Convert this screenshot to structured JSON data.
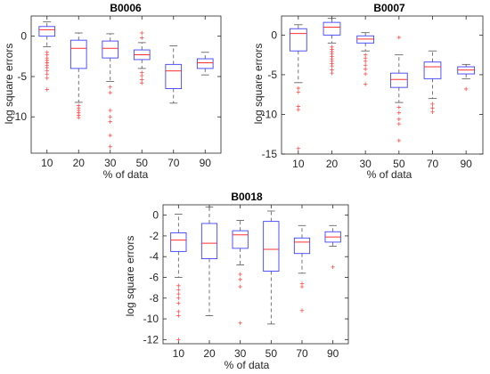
{
  "colors": {
    "box": "#4040ff",
    "whisker": "#555555",
    "median": "#ff3030",
    "outlier": "#ff4d4d",
    "axis": "#262626"
  },
  "chart_data": [
    {
      "type": "box",
      "title": "B0006",
      "xlabel": "% of data",
      "ylabel": "log square errors",
      "categories": [
        "10",
        "20",
        "30",
        "50",
        "70",
        "90"
      ],
      "yticks": [
        0,
        -5,
        -10
      ],
      "ylim": [
        -14.5,
        2.5
      ],
      "grid": false,
      "boxes": [
        {
          "category": "10",
          "whisker_low": -1.3,
          "q1": 0.0,
          "median": 0.8,
          "q3": 1.2,
          "whisker_high": 1.8,
          "outliers": [
            -2.0,
            -2.3,
            -2.7,
            -3.0,
            -3.3,
            -3.6,
            -3.9,
            -4.3,
            -4.7,
            -5.2,
            -6.6
          ]
        },
        {
          "category": "20",
          "whisker_low": -8.2,
          "q1": -4.0,
          "median": -1.5,
          "q3": -0.5,
          "whisker_high": 0.4,
          "outliers": [
            -8.6,
            -8.9,
            -9.2,
            -9.5,
            -9.8,
            -10.1
          ]
        },
        {
          "category": "30",
          "whisker_low": -5.6,
          "q1": -2.7,
          "median": -1.5,
          "q3": -0.6,
          "whisker_high": 0.3,
          "outliers": [
            -6.3,
            -7.0,
            -9.2,
            -10.0,
            -10.6,
            -12.3,
            -13.7
          ]
        },
        {
          "category": "50",
          "whisker_low": -4.0,
          "q1": -2.9,
          "median": -2.3,
          "q3": -1.7,
          "whisker_high": -0.8,
          "outliers": [
            -0.2,
            0.4,
            -4.5,
            -4.9,
            -5.4,
            -5.8
          ]
        },
        {
          "category": "70",
          "whisker_low": -8.3,
          "q1": -6.5,
          "median": -4.3,
          "q3": -3.5,
          "whisker_high": -1.2,
          "outliers": []
        },
        {
          "category": "90",
          "whisker_low": -4.8,
          "q1": -4.0,
          "median": -3.3,
          "q3": -2.8,
          "whisker_high": -2.0,
          "outliers": []
        }
      ]
    },
    {
      "type": "box",
      "title": "B0007",
      "xlabel": "% of data",
      "ylabel": "log square errors",
      "categories": [
        "10",
        "20",
        "30",
        "50",
        "70",
        "90"
      ],
      "yticks": [
        0,
        -5,
        -10,
        -15
      ],
      "ylim": [
        -15,
        2.4
      ],
      "grid": false,
      "boxes": [
        {
          "category": "10",
          "whisker_low": -6.0,
          "q1": -2.0,
          "median": 0.2,
          "q3": 0.8,
          "whisker_high": 1.3,
          "outliers": [
            -6.7,
            -7.2,
            -9.0,
            -9.4,
            -14.3
          ]
        },
        {
          "category": "20",
          "whisker_low": -1.0,
          "q1": 0.0,
          "median": 1.0,
          "q3": 1.6,
          "whisker_high": 2.1,
          "outliers": [
            -1.5,
            -1.8,
            -2.1,
            -2.4,
            -2.7,
            -3.0,
            -3.3,
            -3.6,
            -3.9,
            -4.4,
            -4.8
          ]
        },
        {
          "category": "30",
          "whisker_low": -2.0,
          "q1": -1.0,
          "median": -0.5,
          "q3": -0.1,
          "whisker_high": 0.3,
          "outliers": [
            -2.5,
            -2.9,
            -3.3,
            -3.8,
            -4.3,
            -4.9,
            -6.2
          ]
        },
        {
          "category": "50",
          "whisker_low": -8.5,
          "q1": -6.6,
          "median": -5.6,
          "q3": -4.8,
          "whisker_high": -2.5,
          "outliers": [
            -0.3,
            -9.1,
            -9.8,
            -10.6,
            -11.2,
            -13.3
          ]
        },
        {
          "category": "70",
          "whisker_low": -8.0,
          "q1": -5.5,
          "median": -4.0,
          "q3": -3.4,
          "whisker_high": -2.0,
          "outliers": [
            -8.7,
            -9.2,
            -9.7
          ]
        },
        {
          "category": "90",
          "whisker_low": -5.5,
          "q1": -4.9,
          "median": -4.4,
          "q3": -4.0,
          "whisker_high": -3.7,
          "outliers": [
            -6.8
          ]
        }
      ]
    },
    {
      "type": "box",
      "title": "B0018",
      "xlabel": "% of data",
      "ylabel": "log square errors",
      "categories": [
        "10",
        "20",
        "30",
        "50",
        "70",
        "90"
      ],
      "yticks": [
        0,
        -2,
        -4,
        -6,
        -8,
        -10,
        -12
      ],
      "ylim": [
        -12.4,
        1.0
      ],
      "grid": false,
      "boxes": [
        {
          "category": "10",
          "whisker_low": -6.0,
          "q1": -3.5,
          "median": -2.4,
          "q3": -1.7,
          "whisker_high": 0.1,
          "outliers": [
            -6.8,
            -7.2,
            -7.6,
            -8.0,
            -8.5,
            -9.3,
            -9.7,
            -12.0
          ]
        },
        {
          "category": "20",
          "whisker_low": -9.7,
          "q1": -4.2,
          "median": -2.7,
          "q3": -0.8,
          "whisker_high": 0.8,
          "outliers": []
        },
        {
          "category": "30",
          "whisker_low": -4.8,
          "q1": -3.2,
          "median": -1.9,
          "q3": -1.5,
          "whisker_high": -0.5,
          "outliers": [
            -5.7,
            -6.2,
            -6.9,
            -10.4
          ]
        },
        {
          "category": "50",
          "whisker_low": -10.5,
          "q1": -5.4,
          "median": -3.3,
          "q3": -0.6,
          "whisker_high": 0.4,
          "outliers": []
        },
        {
          "category": "70",
          "whisker_low": -5.6,
          "q1": -3.7,
          "median": -2.6,
          "q3": -2.2,
          "whisker_high": -1.0,
          "outliers": [
            -6.6,
            -6.9,
            -9.2
          ]
        },
        {
          "category": "90",
          "whisker_low": -3.0,
          "q1": -2.6,
          "median": -2.1,
          "q3": -1.6,
          "whisker_high": -1.0,
          "outliers": [
            -5.0
          ]
        }
      ]
    }
  ]
}
